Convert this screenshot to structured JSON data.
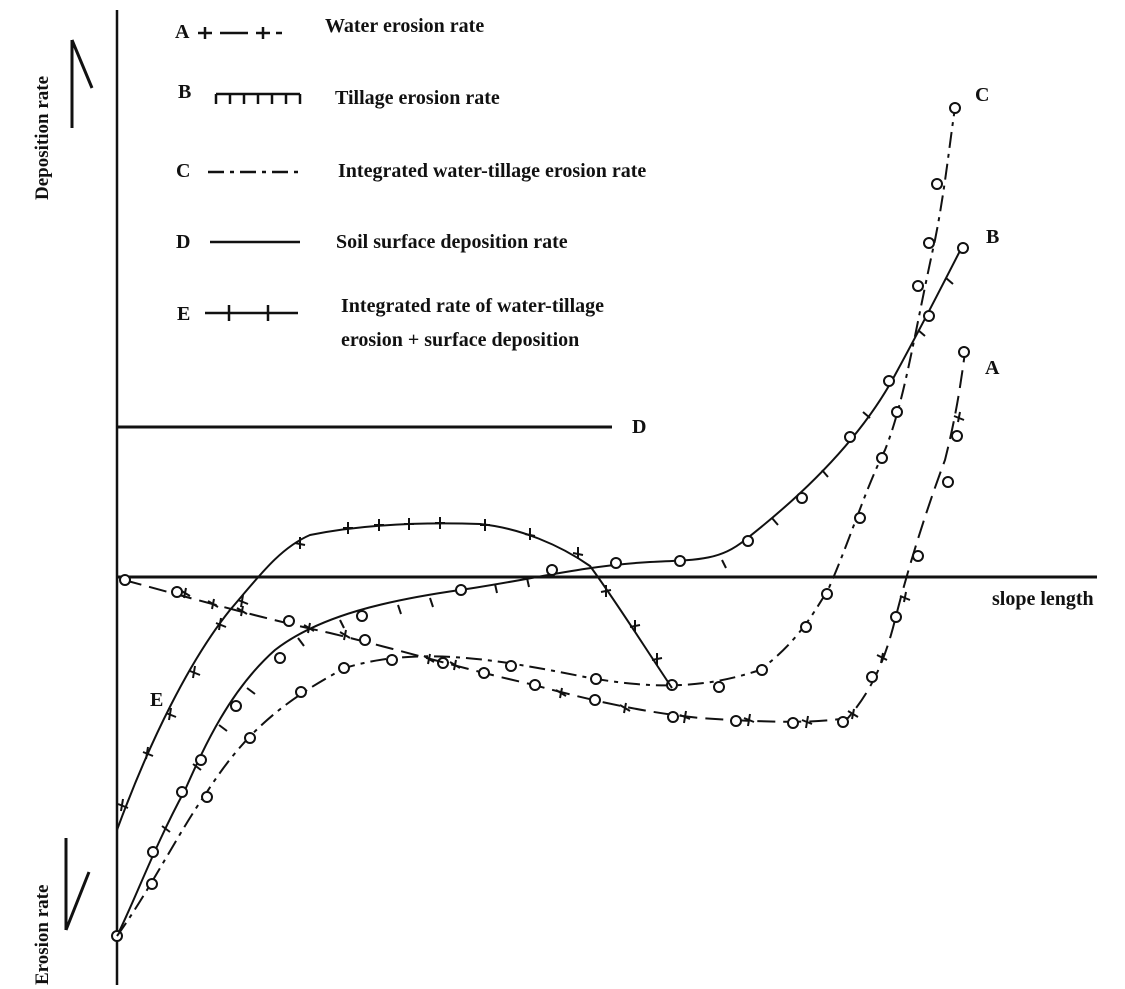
{
  "axis": {
    "x_label": "slope length",
    "y_top_label": "Deposition rate",
    "y_bottom_label": "Erosion rate"
  },
  "legend": [
    {
      "letter": "A",
      "text": "Water erosion rate",
      "style": "dash-cross"
    },
    {
      "letter": "B",
      "text": "Tillage erosion rate",
      "style": "solid-tick"
    },
    {
      "letter": "C",
      "text": "Integrated water-tillage erosion rate",
      "style": "dash-dot"
    },
    {
      "letter": "D",
      "text": "Soil surface deposition rate",
      "style": "solid"
    },
    {
      "letter": "E",
      "text": "Integrated rate of water-tillage",
      "text2": "erosion + surface deposition",
      "style": "solid-cross"
    }
  ],
  "curve_labels": {
    "A": "A",
    "B": "B",
    "C": "C",
    "D": "D",
    "E": "E"
  },
  "colors": {
    "ink": "#111111",
    "background": "#ffffff"
  }
}
